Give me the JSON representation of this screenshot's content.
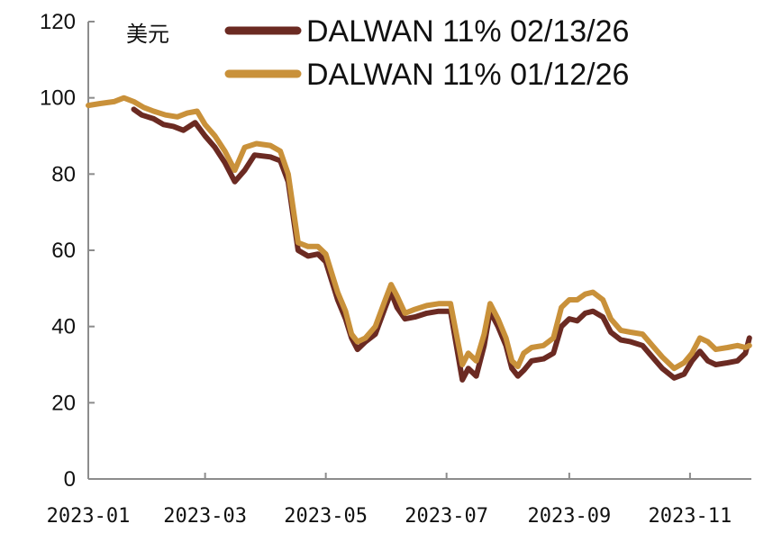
{
  "chart_data": {
    "type": "line",
    "title": "",
    "unit_label": "美元",
    "xlabel": "",
    "ylabel": "",
    "ylim": [
      0,
      120
    ],
    "yticks": [
      "0",
      "20",
      "40",
      "60",
      "80",
      "100",
      "120"
    ],
    "xlim": [
      "2023-01-01",
      "2023-12-02"
    ],
    "xticks": [
      {
        "label": "2023-01",
        "date": "2023-01-01"
      },
      {
        "label": "2023-03",
        "date": "2023-03-01"
      },
      {
        "label": "2023-05",
        "date": "2023-05-01"
      },
      {
        "label": "2023-07",
        "date": "2023-07-01"
      },
      {
        "label": "2023-09",
        "date": "2023-09-01"
      },
      {
        "label": "2023-11",
        "date": "2023-11-01"
      }
    ],
    "grid": false,
    "legend_position": "top-right",
    "series": [
      {
        "name": "DALWAN 11% 02/13/26",
        "color": "#6b2a22",
        "points": [
          [
            "2023-01-24",
            97
          ],
          [
            "2023-01-28",
            95.5
          ],
          [
            "2023-02-03",
            94.5
          ],
          [
            "2023-02-08",
            93
          ],
          [
            "2023-02-13",
            92.5
          ],
          [
            "2023-02-18",
            91.5
          ],
          [
            "2023-02-24",
            93.5
          ],
          [
            "2023-03-01",
            90
          ],
          [
            "2023-03-06",
            87
          ],
          [
            "2023-03-11",
            83
          ],
          [
            "2023-03-16",
            78
          ],
          [
            "2023-03-21",
            81
          ],
          [
            "2023-03-26",
            85
          ],
          [
            "2023-04-03",
            84.5
          ],
          [
            "2023-04-08",
            83.5
          ],
          [
            "2023-04-12",
            78
          ],
          [
            "2023-04-17",
            60
          ],
          [
            "2023-04-22",
            58.5
          ],
          [
            "2023-04-27",
            59
          ],
          [
            "2023-05-01",
            57
          ],
          [
            "2023-05-04",
            52
          ],
          [
            "2023-05-07",
            47
          ],
          [
            "2023-05-11",
            42
          ],
          [
            "2023-05-14",
            37
          ],
          [
            "2023-05-17",
            34
          ],
          [
            "2023-05-21",
            36
          ],
          [
            "2023-05-26",
            38
          ],
          [
            "2023-05-31",
            45
          ],
          [
            "2023-06-03",
            49
          ],
          [
            "2023-06-06",
            45
          ],
          [
            "2023-06-10",
            42
          ],
          [
            "2023-06-15",
            42.5
          ],
          [
            "2023-06-21",
            43.5
          ],
          [
            "2023-06-27",
            44
          ],
          [
            "2023-07-03",
            44
          ],
          [
            "2023-07-06",
            35
          ],
          [
            "2023-07-09",
            26
          ],
          [
            "2023-07-12",
            29
          ],
          [
            "2023-07-16",
            27
          ],
          [
            "2023-07-20",
            35
          ],
          [
            "2023-07-23",
            44
          ],
          [
            "2023-07-27",
            40
          ],
          [
            "2023-07-31",
            35
          ],
          [
            "2023-08-03",
            29
          ],
          [
            "2023-08-06",
            27
          ],
          [
            "2023-08-09",
            28.5
          ],
          [
            "2023-08-13",
            31
          ],
          [
            "2023-08-19",
            31.5
          ],
          [
            "2023-08-24",
            33
          ],
          [
            "2023-08-28",
            40
          ],
          [
            "2023-09-01",
            42
          ],
          [
            "2023-09-05",
            41.5
          ],
          [
            "2023-09-09",
            43.5
          ],
          [
            "2023-09-13",
            44
          ],
          [
            "2023-09-18",
            42.5
          ],
          [
            "2023-09-22",
            38.5
          ],
          [
            "2023-09-27",
            36.5
          ],
          [
            "2023-10-02",
            36
          ],
          [
            "2023-10-08",
            35
          ],
          [
            "2023-10-13",
            32
          ],
          [
            "2023-10-18",
            29
          ],
          [
            "2023-10-24",
            26.5
          ],
          [
            "2023-10-29",
            27.5
          ],
          [
            "2023-11-02",
            31
          ],
          [
            "2023-11-06",
            33.5
          ],
          [
            "2023-11-10",
            31
          ],
          [
            "2023-11-14",
            30
          ],
          [
            "2023-11-20",
            30.5
          ],
          [
            "2023-11-25",
            31
          ],
          [
            "2023-11-29",
            33
          ],
          [
            "2023-12-01",
            37
          ]
        ]
      },
      {
        "name": "DALWAN 11% 01/12/26",
        "color": "#c9913a",
        "points": [
          [
            "2023-01-01",
            98
          ],
          [
            "2023-01-07",
            98.5
          ],
          [
            "2023-01-14",
            99
          ],
          [
            "2023-01-19",
            100
          ],
          [
            "2023-01-24",
            99
          ],
          [
            "2023-01-29",
            97.5
          ],
          [
            "2023-02-03",
            96.5
          ],
          [
            "2023-02-09",
            95.5
          ],
          [
            "2023-02-15",
            95
          ],
          [
            "2023-02-20",
            96
          ],
          [
            "2023-02-25",
            96.5
          ],
          [
            "2023-03-01",
            93
          ],
          [
            "2023-03-06",
            90
          ],
          [
            "2023-03-11",
            86
          ],
          [
            "2023-03-16",
            81
          ],
          [
            "2023-03-21",
            87
          ],
          [
            "2023-03-27",
            88
          ],
          [
            "2023-04-03",
            87.5
          ],
          [
            "2023-04-08",
            86
          ],
          [
            "2023-04-12",
            80
          ],
          [
            "2023-04-17",
            62
          ],
          [
            "2023-04-22",
            61
          ],
          [
            "2023-04-27",
            61
          ],
          [
            "2023-05-01",
            59
          ],
          [
            "2023-05-04",
            54
          ],
          [
            "2023-05-07",
            49
          ],
          [
            "2023-05-11",
            44
          ],
          [
            "2023-05-14",
            38
          ],
          [
            "2023-05-17",
            36
          ],
          [
            "2023-05-21",
            37
          ],
          [
            "2023-05-26",
            40
          ],
          [
            "2023-05-31",
            47
          ],
          [
            "2023-06-03",
            51
          ],
          [
            "2023-06-06",
            48
          ],
          [
            "2023-06-10",
            43.5
          ],
          [
            "2023-06-15",
            44.5
          ],
          [
            "2023-06-21",
            45.5
          ],
          [
            "2023-06-27",
            46
          ],
          [
            "2023-07-03",
            46
          ],
          [
            "2023-07-06",
            38
          ],
          [
            "2023-07-09",
            30
          ],
          [
            "2023-07-12",
            33
          ],
          [
            "2023-07-16",
            31
          ],
          [
            "2023-07-20",
            38
          ],
          [
            "2023-07-23",
            46
          ],
          [
            "2023-07-27",
            42
          ],
          [
            "2023-07-31",
            37
          ],
          [
            "2023-08-03",
            31
          ],
          [
            "2023-08-06",
            29.5
          ],
          [
            "2023-08-09",
            33
          ],
          [
            "2023-08-13",
            34.5
          ],
          [
            "2023-08-19",
            35
          ],
          [
            "2023-08-24",
            37
          ],
          [
            "2023-08-28",
            45
          ],
          [
            "2023-09-01",
            47
          ],
          [
            "2023-09-05",
            47
          ],
          [
            "2023-09-09",
            48.5
          ],
          [
            "2023-09-13",
            49
          ],
          [
            "2023-09-18",
            47
          ],
          [
            "2023-09-22",
            42
          ],
          [
            "2023-09-27",
            39
          ],
          [
            "2023-10-02",
            38.5
          ],
          [
            "2023-10-08",
            38
          ],
          [
            "2023-10-13",
            35
          ],
          [
            "2023-10-18",
            32
          ],
          [
            "2023-10-24",
            29
          ],
          [
            "2023-10-29",
            30.5
          ],
          [
            "2023-11-02",
            33
          ],
          [
            "2023-11-06",
            37
          ],
          [
            "2023-11-10",
            36
          ],
          [
            "2023-11-14",
            34
          ],
          [
            "2023-11-20",
            34.5
          ],
          [
            "2023-11-25",
            35
          ],
          [
            "2023-11-29",
            34.5
          ],
          [
            "2023-12-01",
            35
          ]
        ]
      }
    ]
  }
}
